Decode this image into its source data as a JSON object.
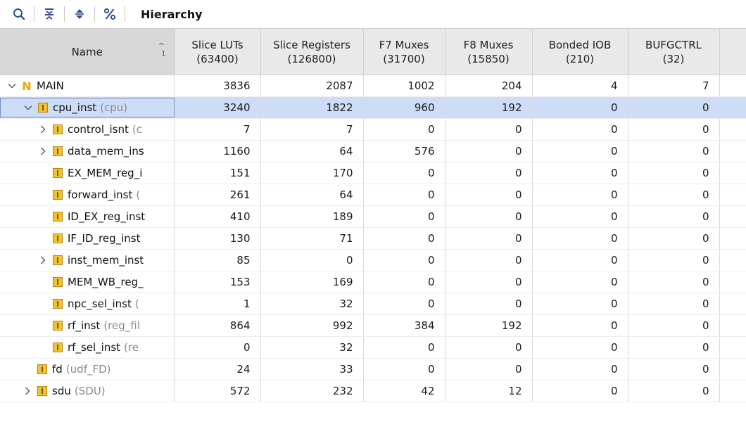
{
  "toolbar": {
    "title": "Hierarchy",
    "icons": [
      "search-icon",
      "collapse-all-icon",
      "expand-all-icon",
      "percent-icon"
    ]
  },
  "table": {
    "columns": [
      {
        "label": "Name",
        "sort_num": "1"
      },
      {
        "line1": "Slice LUTs",
        "line2": "(63400)"
      },
      {
        "line1": "Slice Registers",
        "line2": "(126800)"
      },
      {
        "line1": "F7 Muxes",
        "line2": "(31700)"
      },
      {
        "line1": "F8 Muxes",
        "line2": "(15850)"
      },
      {
        "line1": "Bonded IOB",
        "line2": "(210)"
      },
      {
        "line1": "BUFGCTRL",
        "line2": "(32)"
      }
    ],
    "rows": [
      {
        "name": "MAIN",
        "ref": "",
        "luts": "3836",
        "regs": "2087",
        "f7": "1002",
        "f8": "204",
        "iob": "4",
        "buf": "7"
      },
      {
        "name": "cpu_inst",
        "ref": "(cpu)",
        "luts": "3240",
        "regs": "1822",
        "f7": "960",
        "f8": "192",
        "iob": "0",
        "buf": "0"
      },
      {
        "name": "control_isnt",
        "ref": "(c",
        "luts": "7",
        "regs": "7",
        "f7": "0",
        "f8": "0",
        "iob": "0",
        "buf": "0"
      },
      {
        "name": "data_mem_ins",
        "ref": "",
        "luts": "1160",
        "regs": "64",
        "f7": "576",
        "f8": "0",
        "iob": "0",
        "buf": "0"
      },
      {
        "name": "EX_MEM_reg_i",
        "ref": "",
        "luts": "151",
        "regs": "170",
        "f7": "0",
        "f8": "0",
        "iob": "0",
        "buf": "0"
      },
      {
        "name": "forward_inst",
        "ref": "(",
        "luts": "261",
        "regs": "64",
        "f7": "0",
        "f8": "0",
        "iob": "0",
        "buf": "0"
      },
      {
        "name": "ID_EX_reg_inst",
        "ref": "",
        "luts": "410",
        "regs": "189",
        "f7": "0",
        "f8": "0",
        "iob": "0",
        "buf": "0"
      },
      {
        "name": "IF_ID_reg_inst",
        "ref": "",
        "luts": "130",
        "regs": "71",
        "f7": "0",
        "f8": "0",
        "iob": "0",
        "buf": "0"
      },
      {
        "name": "inst_mem_inst",
        "ref": "",
        "luts": "85",
        "regs": "0",
        "f7": "0",
        "f8": "0",
        "iob": "0",
        "buf": "0"
      },
      {
        "name": "MEM_WB_reg_",
        "ref": "",
        "luts": "153",
        "regs": "169",
        "f7": "0",
        "f8": "0",
        "iob": "0",
        "buf": "0"
      },
      {
        "name": "npc_sel_inst",
        "ref": "(",
        "luts": "1",
        "regs": "32",
        "f7": "0",
        "f8": "0",
        "iob": "0",
        "buf": "0"
      },
      {
        "name": "rf_inst",
        "ref": "(reg_fil",
        "luts": "864",
        "regs": "992",
        "f7": "384",
        "f8": "192",
        "iob": "0",
        "buf": "0"
      },
      {
        "name": "rf_sel_inst",
        "ref": "(re",
        "luts": "0",
        "regs": "32",
        "f7": "0",
        "f8": "0",
        "iob": "0",
        "buf": "0"
      },
      {
        "name": "fd",
        "ref": "(udf_FD)",
        "luts": "24",
        "regs": "33",
        "f7": "0",
        "f8": "0",
        "iob": "0",
        "buf": "0"
      },
      {
        "name": "sdu",
        "ref": "(SDU)",
        "luts": "572",
        "regs": "232",
        "f7": "42",
        "f8": "12",
        "iob": "0",
        "buf": "0"
      }
    ]
  }
}
